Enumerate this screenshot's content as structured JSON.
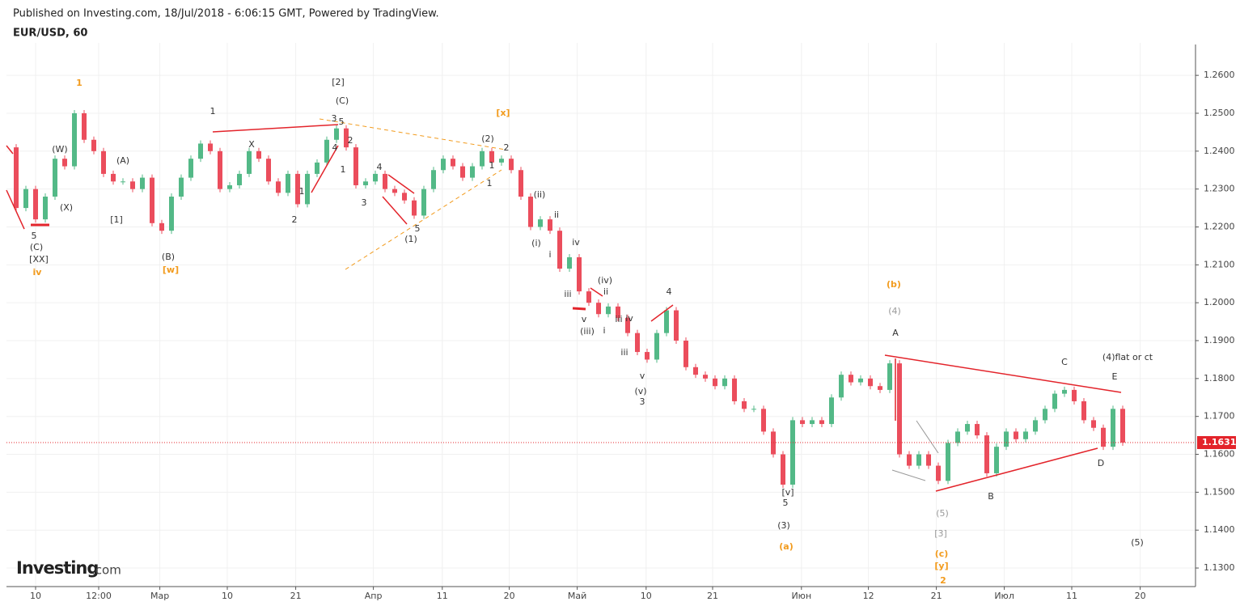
{
  "header": {
    "published": "Published on Investing.com, 18/Jul/2018 - 6:06:15 GMT, Powered by TradingView.",
    "logo_main": "Investing",
    "logo_suffix": ".com"
  },
  "chart_data": {
    "type": "candlestick",
    "title": "EUR/USD, 60",
    "up_color": "#53b987",
    "down_color": "#eb4d5c",
    "values": [
      1.241,
      1.225,
      1.23,
      1.222,
      1.228,
      1.238,
      1.236,
      1.25,
      1.243,
      1.24,
      1.234,
      1.232,
      1.232,
      1.23,
      1.233,
      1.221,
      1.219,
      1.228,
      1.233,
      1.238,
      1.242,
      1.24,
      1.23,
      1.231,
      1.234,
      1.24,
      1.238,
      1.232,
      1.229,
      1.234,
      1.226,
      1.234,
      1.237,
      1.243,
      1.246,
      1.241,
      1.231,
      1.232,
      1.234,
      1.23,
      1.229,
      1.227,
      1.223,
      1.23,
      1.235,
      1.238,
      1.236,
      1.233,
      1.236,
      1.24,
      1.237,
      1.238,
      1.235,
      1.228,
      1.22,
      1.222,
      1.219,
      1.209,
      1.212,
      1.203,
      1.2,
      1.197,
      1.199,
      1.196,
      1.192,
      1.187,
      1.185,
      1.192,
      1.198,
      1.19,
      1.183,
      1.181,
      1.18,
      1.178,
      1.18,
      1.174,
      1.172,
      1.172,
      1.166,
      1.16,
      1.152,
      1.169,
      1.168,
      1.169,
      1.168,
      1.175,
      1.181,
      1.179,
      1.18,
      1.178,
      1.177,
      1.184,
      1.16,
      1.157,
      1.16,
      1.157,
      1.153,
      1.163,
      1.166,
      1.168,
      1.165,
      1.155,
      1.162,
      1.166,
      1.164,
      1.166,
      1.169,
      1.172,
      1.176,
      1.177,
      1.174,
      1.169,
      1.167,
      1.162,
      1.172,
      1.1631
    ],
    "last_price": 1.1631,
    "xlim": [
      0,
      122.5
    ],
    "xticks": [
      {
        "value": 3,
        "label": "10"
      },
      {
        "value": 9.5,
        "label": "12:00"
      },
      {
        "value": 15.8,
        "label": "Мар"
      },
      {
        "value": 22.75,
        "label": "10"
      },
      {
        "value": 29.8,
        "label": "21"
      },
      {
        "value": 37.8,
        "label": "Апр"
      },
      {
        "value": 44.9,
        "label": "11"
      },
      {
        "value": 51.8,
        "label": "20"
      },
      {
        "value": 58.8,
        "label": "Май"
      },
      {
        "value": 65.9,
        "label": "10"
      },
      {
        "value": 72.75,
        "label": "21"
      },
      {
        "value": 81.9,
        "label": "Июн"
      },
      {
        "value": 88.8,
        "label": "12"
      },
      {
        "value": 95.8,
        "label": "21"
      },
      {
        "value": 102.8,
        "label": "Июл"
      },
      {
        "value": 109.75,
        "label": "11"
      },
      {
        "value": 116.8,
        "label": "20"
      }
    ],
    "ylim": [
      1.1251,
      1.2675
    ],
    "yticks": [
      {
        "value": 1.13,
        "label": "1.1300"
      },
      {
        "value": 1.14,
        "label": "1.1400"
      },
      {
        "value": 1.15,
        "label": "1.1500"
      },
      {
        "value": 1.16,
        "label": "1.1600"
      },
      {
        "value": 1.17,
        "label": "1.1700"
      },
      {
        "value": 1.18,
        "label": "1.1800"
      },
      {
        "value": 1.19,
        "label": "1.1900"
      },
      {
        "value": 1.2,
        "label": "1.2000"
      },
      {
        "value": 1.21,
        "label": "1.2100"
      },
      {
        "value": 1.22,
        "label": "1.2200"
      },
      {
        "value": 1.23,
        "label": "1.2300"
      },
      {
        "value": 1.24,
        "label": "1.2400"
      },
      {
        "value": 1.25,
        "label": "1.2500"
      },
      {
        "value": 1.26,
        "label": "1.2600"
      }
    ],
    "grid": true,
    "annotations": [
      "1",
      "[2]",
      "(C)",
      "[x]",
      "1",
      "3",
      "5",
      "(W)",
      "(A)",
      "X",
      "2",
      "4",
      "1",
      "(2)",
      "2",
      "1",
      "1",
      "4",
      "3",
      "2",
      "1",
      "(X)",
      "[1]",
      "5",
      "(1)",
      "(ii)",
      "ii",
      "iv",
      "(i)",
      "i",
      "(iv)",
      "ii",
      "iii",
      "4",
      "v",
      "i",
      "(iii)",
      "iii",
      "iv",
      "iii",
      "v",
      "(v)",
      "3",
      "5",
      "(C)",
      "[XX]",
      "iv",
      "(B)",
      "[w]",
      "(b)",
      "(4)",
      "A",
      "C",
      "(4)flat or ct",
      "E",
      "D",
      "B",
      "[v]",
      "5",
      "(3)",
      "(a)",
      "(5)",
      "[3]",
      "(c)",
      "[y]",
      "2",
      "(5)"
    ]
  }
}
